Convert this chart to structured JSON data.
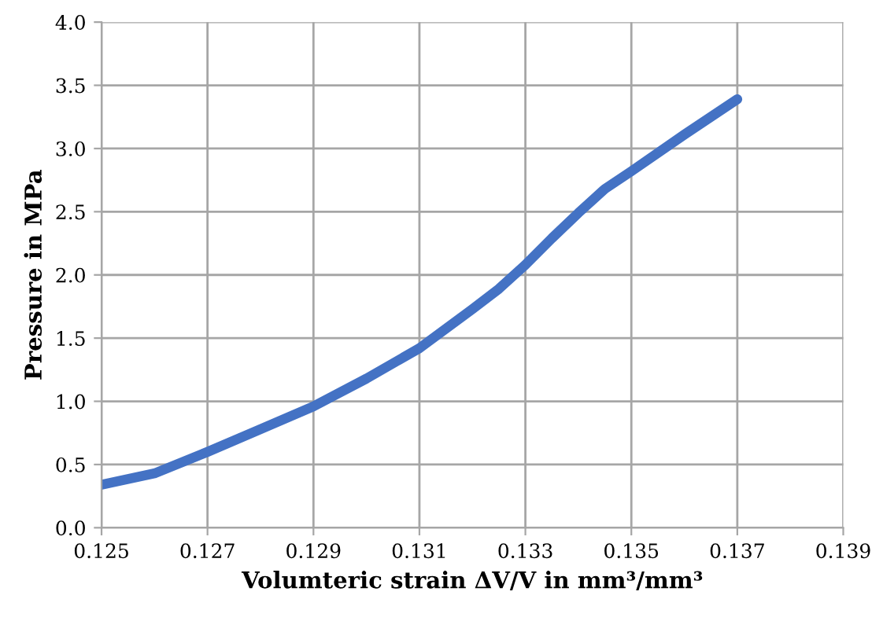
{
  "chart_data": {
    "type": "line",
    "xlabel": "Volumteric strain ΔV/V in mm³/mm³",
    "ylabel": "Pressure in MPa",
    "x": [
      0.125,
      0.126,
      0.127,
      0.128,
      0.129,
      0.13,
      0.131,
      0.132,
      0.1325,
      0.133,
      0.1335,
      0.134,
      0.1345,
      0.135,
      0.136,
      0.137
    ],
    "series": [
      {
        "color": "#4472c4",
        "values": [
          0.34,
          0.43,
          0.6,
          0.78,
          0.96,
          1.18,
          1.42,
          1.73,
          1.89,
          2.08,
          2.29,
          2.49,
          2.68,
          2.82,
          3.11,
          3.39
        ]
      }
    ],
    "xlim": [
      0.125,
      0.139
    ],
    "xticks": [
      {
        "value": 0.125,
        "label": "0.125"
      },
      {
        "value": 0.127,
        "label": "0.127"
      },
      {
        "value": 0.129,
        "label": "0.129"
      },
      {
        "value": 0.131,
        "label": "0.131"
      },
      {
        "value": 0.133,
        "label": "0.133"
      },
      {
        "value": 0.135,
        "label": "0.135"
      },
      {
        "value": 0.137,
        "label": "0.137"
      },
      {
        "value": 0.139,
        "label": "0.139"
      }
    ],
    "ylim": [
      0,
      4
    ],
    "yticks": [
      {
        "value": 0,
        "label": "0.0"
      },
      {
        "value": 0.5,
        "label": "0.5"
      },
      {
        "value": 1,
        "label": "1.0"
      },
      {
        "value": 1.5,
        "label": "1.5"
      },
      {
        "value": 2,
        "label": "2.0"
      },
      {
        "value": 2.5,
        "label": "2.5"
      },
      {
        "value": 3,
        "label": "3.0"
      },
      {
        "value": 3.5,
        "label": "3.5"
      },
      {
        "value": 4,
        "label": "4.0"
      }
    ],
    "grid": true,
    "legend": false,
    "marker": "none",
    "line_style": "solid"
  }
}
